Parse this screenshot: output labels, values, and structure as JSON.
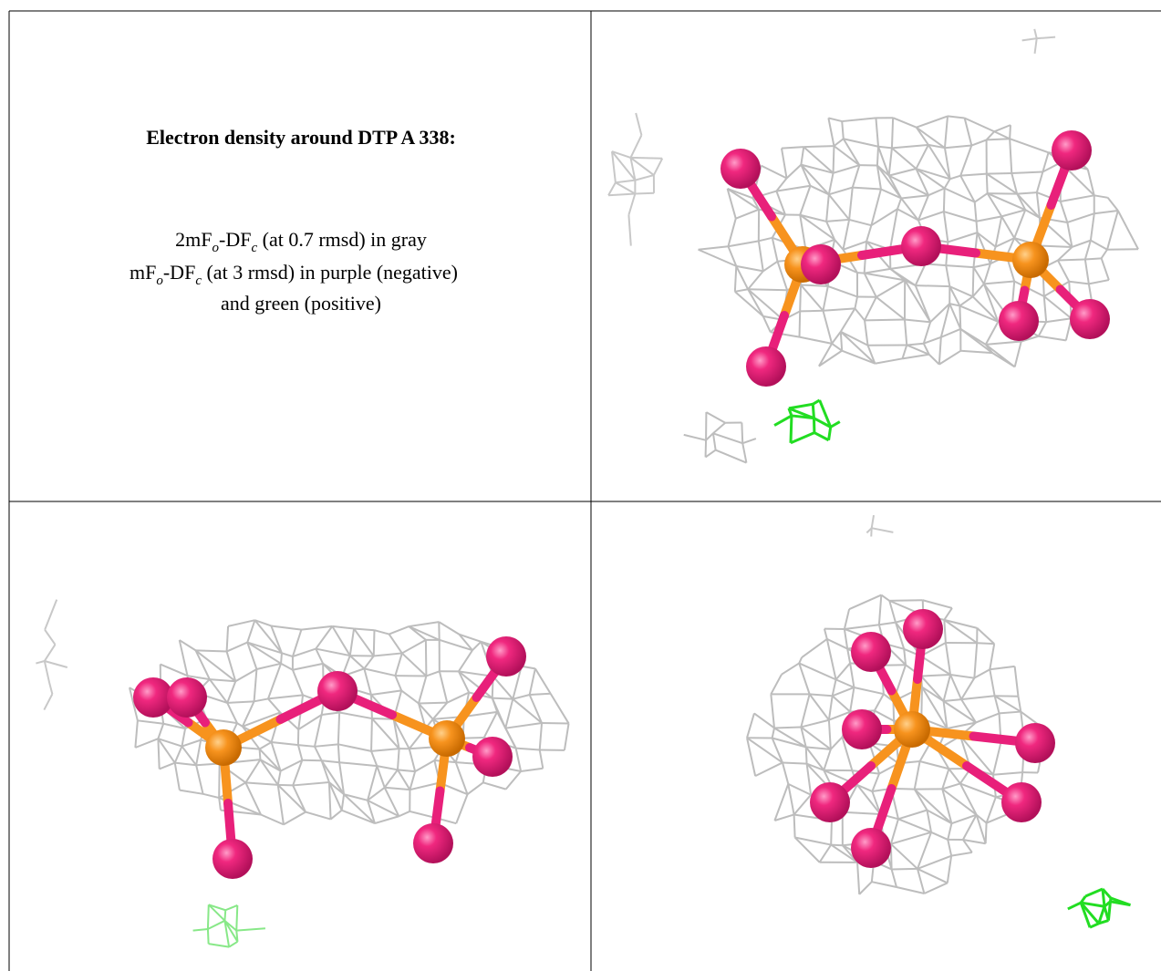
{
  "caption": {
    "title": "Electron density around DTP A 338:",
    "lines": [
      [
        "2mF",
        "o",
        "-DF",
        "c",
        " (at 0.7 rmsd) in gray"
      ],
      [
        "mF",
        "o",
        "-DF",
        "c",
        " (at 3 rmsd) in purple (negative)"
      ],
      [
        "and green (positive)"
      ]
    ]
  }
}
